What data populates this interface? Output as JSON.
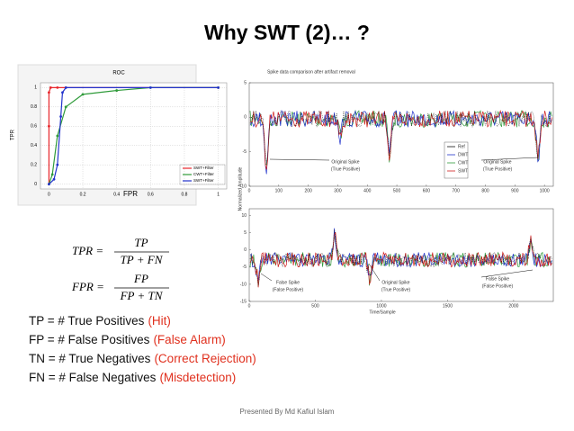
{
  "title": "Why SWT (2)… ?",
  "roc": {
    "title": "ROC",
    "xlabel": "FPR",
    "ylabel": "TPR",
    "xlim": [
      -0.05,
      1.05
    ],
    "ylim": [
      -0.05,
      1.05
    ],
    "xticks": [
      0,
      0.2,
      0.4,
      0.6,
      0.8,
      1
    ],
    "yticks": [
      0,
      0.2,
      0.4,
      0.6,
      0.8,
      1
    ],
    "series": [
      {
        "name": "SWT+Filter",
        "color": "#e8262b",
        "x": [
          0,
          0,
          0,
          0.01,
          0.05,
          0.1,
          1
        ],
        "values": [
          0,
          0.6,
          0.95,
          1,
          1,
          1,
          1
        ]
      },
      {
        "name": "CWT+Filter",
        "color": "#2f9b3a",
        "x": [
          0,
          0.02,
          0.05,
          0.1,
          0.2,
          0.4,
          0.6,
          1
        ],
        "values": [
          0,
          0.1,
          0.5,
          0.8,
          0.93,
          0.97,
          1,
          1
        ]
      },
      {
        "name": "SWT+Filter",
        "color": "#2233cc",
        "x": [
          0,
          0.03,
          0.05,
          0.07,
          0.08,
          0.1,
          0.6,
          1
        ],
        "values": [
          0,
          0.05,
          0.2,
          0.7,
          0.95,
          1,
          1,
          1
        ]
      }
    ]
  },
  "formulas": [
    {
      "lhs": "TPR =",
      "num": "TP",
      "den": "TP + FN"
    },
    {
      "lhs": "FPR =",
      "num": "FP",
      "den": "FP + TN"
    }
  ],
  "bullets": [
    {
      "label": "TP = # True Positives",
      "note": "(Hit)"
    },
    {
      "label": "FP = # False Positives",
      "note": "(False Alarm)"
    },
    {
      "label": "TN = # True Negatives",
      "note": "(Correct Rejection)"
    },
    {
      "label": "FN = # False Negatives",
      "note": "(Misdetection)"
    }
  ],
  "signals": {
    "ylabel": "Normalized Amplitude",
    "top": {
      "title": "Spike data comparison after artifact removal",
      "xlim": [
        0,
        1030
      ],
      "ylim": [
        -10,
        5
      ],
      "xticks": [
        0,
        100,
        200,
        300,
        400,
        500,
        600,
        700,
        800,
        900,
        1000
      ],
      "yticks": [
        -10,
        -5,
        0,
        5
      ],
      "legend": [
        "Ref",
        "DWT",
        "CWT",
        "SWT"
      ],
      "annotations": [
        {
          "line1": "Original Spike",
          "line2": "(True Positive)"
        },
        {
          "line1": "Original Spike",
          "line2": "(True Positive)"
        }
      ]
    },
    "bottom": {
      "xlabel": "Time/Sample",
      "xlim": [
        0,
        2300
      ],
      "ylim": [
        -15,
        12
      ],
      "xticks": [
        0,
        500,
        1000,
        1500,
        2000
      ],
      "yticks": [
        -15,
        -10,
        -5,
        0,
        5,
        10
      ],
      "annotations": [
        {
          "line1": "False Spike",
          "line2": "(False Positive)"
        },
        {
          "line1": "Original Spike",
          "line2": "(True Positive)"
        },
        {
          "line1": "False Spike",
          "line2": "(False Positive)"
        }
      ]
    }
  },
  "footer": "Presented By Md Kafiul Islam"
}
